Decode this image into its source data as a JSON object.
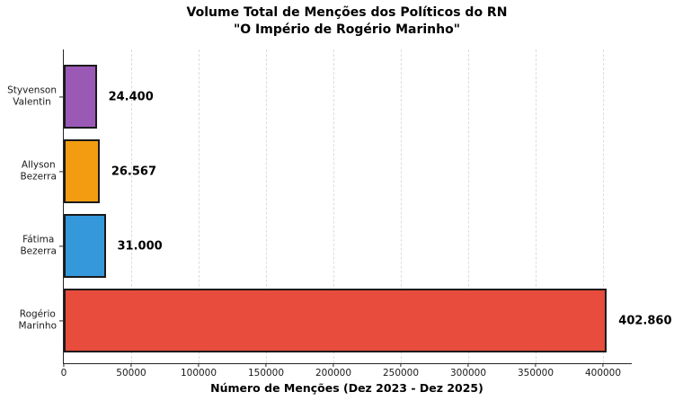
{
  "chart_data": {
    "type": "bar",
    "orientation": "horizontal",
    "title_line1": "Volume Total de Menções dos Políticos do RN",
    "title_line2": "\"O Império de Rogério Marinho\"",
    "xlabel": "Número de Menções (Dez 2023 - Dez 2025)",
    "xlim": [
      0,
      421333
    ],
    "grid": "vertical-dashed",
    "legend": "none",
    "bars": [
      {
        "category": "Styvenson Valentin",
        "label_lines": [
          "Styvenson",
          "Valentin"
        ],
        "value": 24400,
        "value_label": "24.400",
        "color": "#9b59b6"
      },
      {
        "category": "Allyson Bezerra",
        "label_lines": [
          "Allyson",
          "Bezerra"
        ],
        "value": 26567,
        "value_label": "26.567",
        "color": "#f39c12"
      },
      {
        "category": "Fátima Bezerra",
        "label_lines": [
          "Fátima",
          "Bezerra"
        ],
        "value": 31000,
        "value_label": "31.000",
        "color": "#3498db"
      },
      {
        "category": "Rogério Marinho",
        "label_lines": [
          "Rogério",
          "Marinho"
        ],
        "value": 402860,
        "value_label": "402.860",
        "color": "#e74c3c"
      }
    ],
    "x_ticks": [
      {
        "value": 0,
        "label": "0"
      },
      {
        "value": 50000,
        "label": "50000"
      },
      {
        "value": 100000,
        "label": "100000"
      },
      {
        "value": 150000,
        "label": "150000"
      },
      {
        "value": 200000,
        "label": "200000"
      },
      {
        "value": 250000,
        "label": "250000"
      },
      {
        "value": 300000,
        "label": "300000"
      },
      {
        "value": 350000,
        "label": "350000"
      },
      {
        "value": 400000,
        "label": "400000"
      }
    ],
    "styles": {
      "bar_edge_color": "#1a1a1a",
      "grid_color": "#dcdcdc",
      "axis_color": "#262626",
      "text_color": "#000000",
      "background": "#ffffff"
    }
  }
}
